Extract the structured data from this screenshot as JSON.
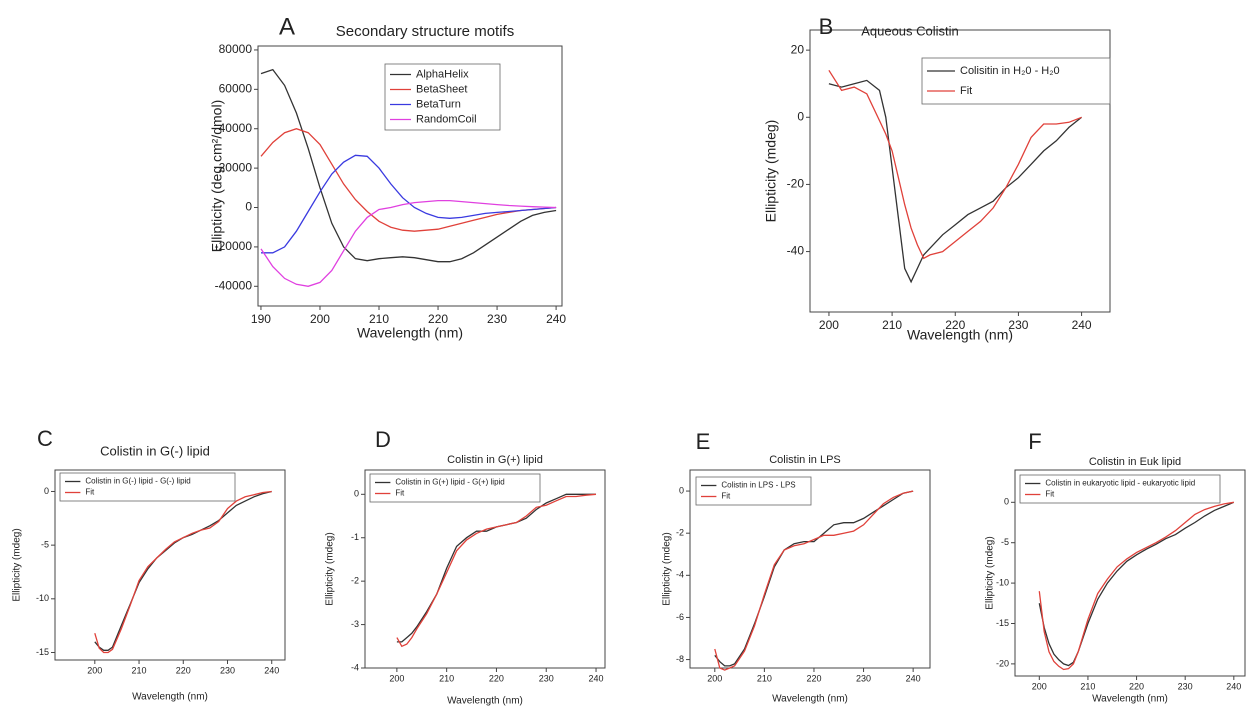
{
  "chart_data": [
    {
      "type": "line",
      "panel_label": "A",
      "title": "Secondary structure motifs",
      "x_label": "Wavelength (nm)",
      "y_label": "Ellipticity (deg cm²/dmol)",
      "x": [
        190,
        192,
        194,
        196,
        198,
        200,
        202,
        204,
        206,
        208,
        210,
        212,
        214,
        216,
        218,
        220,
        222,
        224,
        226,
        228,
        230,
        232,
        234,
        236,
        238,
        240
      ],
      "series": [
        {
          "name": "AlphaHelix",
          "color": "#333333",
          "values": [
            68000,
            70000,
            62000,
            48000,
            30000,
            10000,
            -8000,
            -20000,
            -26000,
            -27000,
            -26000,
            -25500,
            -25000,
            -25500,
            -26500,
            -27500,
            -27500,
            -26000,
            -23000,
            -19000,
            -15000,
            -11000,
            -7000,
            -4000,
            -2500,
            -1500
          ]
        },
        {
          "name": "BetaSheet",
          "color": "#e0413a",
          "values": [
            26000,
            33000,
            38000,
            40000,
            38000,
            32000,
            22000,
            12000,
            4000,
            -2000,
            -7000,
            -10000,
            -11500,
            -12000,
            -11500,
            -11000,
            -9500,
            -8000,
            -6500,
            -5000,
            -3500,
            -2500,
            -1500,
            -1000,
            -500,
            0
          ]
        },
        {
          "name": "BetaTurn",
          "color": "#3a3ae0",
          "values": [
            -23000,
            -23000,
            -20000,
            -12000,
            -2000,
            8000,
            17000,
            23000,
            26500,
            26000,
            20000,
            12000,
            5000,
            0,
            -3000,
            -5000,
            -5500,
            -5000,
            -4000,
            -3000,
            -2500,
            -2000,
            -1500,
            -1000,
            -500,
            0
          ]
        },
        {
          "name": "RandomCoil",
          "color": "#e040e0",
          "values": [
            -21000,
            -30000,
            -36000,
            -39000,
            -40000,
            -38000,
            -32000,
            -22000,
            -12000,
            -5000,
            -1000,
            0,
            1500,
            2500,
            3000,
            3500,
            3500,
            3000,
            2500,
            2000,
            1500,
            1000,
            700,
            400,
            200,
            0
          ]
        }
      ],
      "xlim": [
        189.5,
        241
      ],
      "xticks": [
        190,
        200,
        210,
        220,
        230,
        240
      ],
      "ylim": [
        -50000,
        82000
      ],
      "yticks": [
        80000,
        60000,
        40000,
        20000,
        0,
        -20000,
        -40000
      ]
    },
    {
      "type": "line",
      "panel_label": "B",
      "title": "Aqueous Colistin",
      "x_label": "Wavelength (nm)",
      "y_label": "Ellipticity (mdeg)",
      "x": [
        200,
        202,
        204,
        206,
        208,
        209,
        210,
        211,
        212,
        213,
        214,
        215,
        216,
        218,
        220,
        222,
        224,
        226,
        228,
        230,
        232,
        234,
        236,
        238,
        240
      ],
      "series": [
        {
          "name": "Colisitin in H₂0 - H₂0",
          "color": "#333333",
          "values": [
            10,
            9,
            10,
            11,
            8,
            0,
            -15,
            -30,
            -45,
            -49,
            -45,
            -41,
            -39,
            -35,
            -32,
            -29,
            -27,
            -25,
            -21,
            -18,
            -14,
            -10,
            -7,
            -3,
            0
          ]
        },
        {
          "name": "Fit",
          "color": "#e0413a",
          "values": [
            14,
            8,
            9,
            7,
            -1,
            -5,
            -10,
            -18,
            -26,
            -33,
            -38,
            -42,
            -41,
            -40,
            -37,
            -34,
            -31,
            -27,
            -21,
            -14,
            -6,
            -2,
            -2,
            -1.5,
            0
          ]
        }
      ],
      "xlim": [
        197,
        244.5
      ],
      "xticks": [
        200,
        210,
        220,
        230,
        240
      ],
      "ylim": [
        -58,
        26
      ],
      "yticks": [
        20,
        0,
        -20,
        -40
      ]
    },
    {
      "type": "line",
      "panel_label": "C",
      "title": "Colistin in G(-) lipid",
      "x_label": "Wavelength (nm)",
      "y_label": "Ellipticity (mdeg)",
      "x": [
        200,
        201,
        202,
        203,
        204,
        206,
        208,
        210,
        212,
        214,
        216,
        218,
        220,
        222,
        224,
        226,
        228,
        230,
        232,
        234,
        236,
        238,
        240
      ],
      "series": [
        {
          "name": "Colistin in G(-) lipid - G(-) lipid",
          "color": "#333333",
          "values": [
            -14,
            -14.5,
            -14.8,
            -14.8,
            -14.5,
            -12.5,
            -10.5,
            -8.5,
            -7.2,
            -6.2,
            -5.5,
            -4.8,
            -4.3,
            -4,
            -3.6,
            -3.2,
            -2.7,
            -2,
            -1.3,
            -0.9,
            -0.5,
            -0.2,
            0
          ]
        },
        {
          "name": "Fit",
          "color": "#e0413a",
          "values": [
            -13.2,
            -14.6,
            -15,
            -15,
            -14.7,
            -12.8,
            -10.6,
            -8.3,
            -7,
            -6.2,
            -5.4,
            -4.7,
            -4.3,
            -3.9,
            -3.6,
            -3.4,
            -2.8,
            -1.6,
            -0.9,
            -0.5,
            -0.3,
            -0.1,
            0
          ]
        }
      ],
      "xlim": [
        191,
        243
      ],
      "xticks": [
        200,
        210,
        220,
        230,
        240
      ],
      "ylim": [
        -15.7,
        2
      ],
      "yticks": [
        0,
        -5,
        -10,
        -15
      ]
    },
    {
      "type": "line",
      "panel_label": "D",
      "title": "Colistin in G(+) lipid",
      "x_label": "Wavelength (nm)",
      "y_label": "Ellipticity (mdeg)",
      "x": [
        200,
        201,
        202,
        203,
        204,
        206,
        208,
        210,
        212,
        214,
        216,
        218,
        220,
        222,
        224,
        226,
        228,
        230,
        232,
        234,
        236,
        238,
        240
      ],
      "series": [
        {
          "name": "Colistin in G(+) lipid - G(+) lipid",
          "color": "#333333",
          "values": [
            -3.4,
            -3.4,
            -3.3,
            -3.2,
            -3.05,
            -2.7,
            -2.3,
            -1.7,
            -1.2,
            -1,
            -0.85,
            -0.85,
            -0.75,
            -0.7,
            -0.65,
            -0.55,
            -0.35,
            -0.2,
            -0.1,
            0,
            0,
            0,
            0
          ]
        },
        {
          "name": "Fit",
          "color": "#e0413a",
          "values": [
            -3.3,
            -3.5,
            -3.45,
            -3.3,
            -3.1,
            -2.75,
            -2.3,
            -1.8,
            -1.3,
            -1.05,
            -0.9,
            -0.8,
            -0.75,
            -0.7,
            -0.65,
            -0.5,
            -0.3,
            -0.25,
            -0.15,
            -0.05,
            -0.05,
            -0.02,
            0
          ]
        }
      ],
      "xlim": [
        193.6,
        241.8
      ],
      "xticks": [
        200,
        210,
        220,
        230,
        240
      ],
      "ylim": [
        -4,
        0.56
      ],
      "yticks": [
        0,
        -1,
        -2,
        -3,
        -4
      ]
    },
    {
      "type": "line",
      "panel_label": "E",
      "title": "Colistin in LPS",
      "x_label": "Wavelength (nm)",
      "y_label": "Ellipticity (mdeg)",
      "x": [
        200,
        201,
        202,
        203,
        204,
        206,
        208,
        210,
        212,
        214,
        216,
        218,
        220,
        222,
        224,
        226,
        228,
        230,
        232,
        234,
        236,
        238,
        240
      ],
      "series": [
        {
          "name": "Colistin in LPS - LPS",
          "color": "#333333",
          "values": [
            -7.8,
            -8.1,
            -8.3,
            -8.3,
            -8.2,
            -7.5,
            -6.3,
            -5,
            -3.6,
            -2.8,
            -2.5,
            -2.4,
            -2.4,
            -2,
            -1.6,
            -1.5,
            -1.5,
            -1.3,
            -1,
            -0.7,
            -0.4,
            -0.1,
            0
          ]
        },
        {
          "name": "Fit",
          "color": "#e0413a",
          "values": [
            -7.5,
            -8.4,
            -8.5,
            -8.4,
            -8.3,
            -7.6,
            -6.4,
            -4.9,
            -3.5,
            -2.8,
            -2.6,
            -2.5,
            -2.3,
            -2.1,
            -2.1,
            -2,
            -1.9,
            -1.6,
            -1.1,
            -0.6,
            -0.3,
            -0.1,
            0
          ]
        }
      ],
      "xlim": [
        195,
        243.4
      ],
      "xticks": [
        200,
        210,
        220,
        230,
        240
      ],
      "ylim": [
        -8.4,
        1
      ],
      "yticks": [
        0,
        -2,
        -4,
        -6,
        -8
      ]
    },
    {
      "type": "line",
      "panel_label": "F",
      "title": "Colistin in Euk lipid",
      "x_label": "Wavelength (nm)",
      "y_label": "Ellipticity (mdeg)",
      "x": [
        200,
        201,
        202,
        203,
        204,
        205,
        206,
        207,
        208,
        210,
        212,
        214,
        216,
        218,
        220,
        222,
        224,
        226,
        228,
        230,
        232,
        234,
        236,
        238,
        240
      ],
      "series": [
        {
          "name": "Colistin in eukaryotic lipid - eukaryotic lipid",
          "color": "#333333",
          "values": [
            -12.5,
            -15.5,
            -17.5,
            -18.8,
            -19.5,
            -20,
            -20.2,
            -19.8,
            -18.5,
            -15,
            -12,
            -10,
            -8.5,
            -7.3,
            -6.5,
            -5.8,
            -5.2,
            -4.5,
            -4,
            -3.2,
            -2.5,
            -1.7,
            -1,
            -0.5,
            0
          ]
        },
        {
          "name": "Fit",
          "color": "#e0413a",
          "values": [
            -11,
            -16,
            -18.5,
            -19.7,
            -20.3,
            -20.7,
            -20.6,
            -20,
            -18.5,
            -14.5,
            -11.3,
            -9.5,
            -8,
            -7,
            -6.2,
            -5.6,
            -5,
            -4.3,
            -3.5,
            -2.5,
            -1.5,
            -0.9,
            -0.5,
            -0.2,
            0
          ]
        }
      ],
      "xlim": [
        195,
        242.3
      ],
      "xticks": [
        200,
        210,
        220,
        230,
        240
      ],
      "ylim": [
        -21.5,
        4
      ],
      "yticks": [
        0,
        -5,
        -10,
        -15,
        -20
      ]
    }
  ]
}
